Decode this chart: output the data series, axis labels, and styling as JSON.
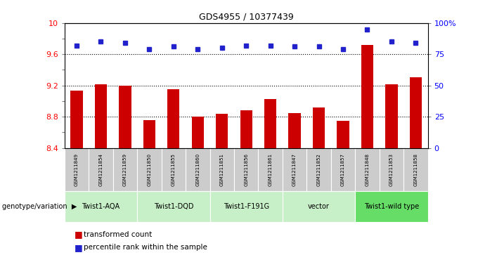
{
  "title": "GDS4955 / 10377439",
  "samples": [
    "GSM1211849",
    "GSM1211854",
    "GSM1211859",
    "GSM1211850",
    "GSM1211855",
    "GSM1211860",
    "GSM1211851",
    "GSM1211856",
    "GSM1211861",
    "GSM1211847",
    "GSM1211852",
    "GSM1211857",
    "GSM1211848",
    "GSM1211853",
    "GSM1211858"
  ],
  "transformed_count": [
    9.13,
    9.21,
    9.2,
    8.76,
    9.15,
    8.8,
    8.84,
    8.88,
    9.03,
    8.85,
    8.92,
    8.75,
    9.72,
    9.21,
    9.3
  ],
  "percentile_rank": [
    82,
    85,
    84,
    79,
    81,
    79,
    80,
    82,
    82,
    81,
    81,
    79,
    95,
    85,
    84
  ],
  "groups": [
    {
      "label": "Twist1-AQA",
      "indices": [
        0,
        1,
        2
      ]
    },
    {
      "label": "Twist1-DQD",
      "indices": [
        3,
        4,
        5
      ]
    },
    {
      "label": "Twist1-F191G",
      "indices": [
        6,
        7,
        8
      ]
    },
    {
      "label": "vector",
      "indices": [
        9,
        10,
        11
      ]
    },
    {
      "label": "Twist1-wild type",
      "indices": [
        12,
        13,
        14
      ]
    }
  ],
  "group_colors": [
    "#c8f0c8",
    "#c8f0c8",
    "#c8f0c8",
    "#c8f0c8",
    "#66dd66"
  ],
  "ylim_left": [
    8.4,
    10.0
  ],
  "ylim_right": [
    0,
    100
  ],
  "yticks_left": [
    8.4,
    8.6,
    8.8,
    9.0,
    9.2,
    9.4,
    9.6,
    9.8,
    10.0
  ],
  "ytick_labels_left": [
    "8.4",
    "",
    "8.8",
    "",
    "9.2",
    "",
    "9.6",
    "",
    "10"
  ],
  "yticks_right": [
    0,
    25,
    50,
    75,
    100
  ],
  "ytick_labels_right": [
    "0",
    "25",
    "50",
    "75",
    "100%"
  ],
  "dotted_lines": [
    8.8,
    9.2,
    9.6
  ],
  "bar_color": "#cc0000",
  "dot_color": "#2222cc",
  "bar_width": 0.5,
  "sample_bg_color": "#cccccc",
  "legend_bar": "transformed count",
  "legend_dot": "percentile rank within the sample",
  "genotype_label": "genotype/variation"
}
